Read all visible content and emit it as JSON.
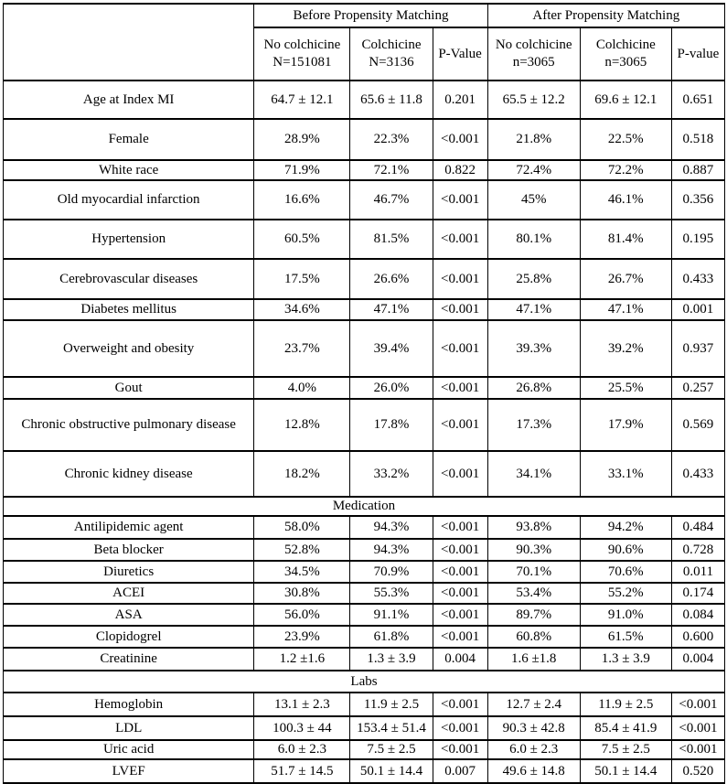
{
  "table": {
    "header": {
      "group_before": "Before Propensity Matching",
      "group_after": "After Propensity Matching",
      "columns": [
        {
          "line1": "No colchicine",
          "line2": "N=151081"
        },
        {
          "line1": "Colchicine",
          "line2": "N=3136"
        },
        {
          "line1": "P-Value",
          "line2": ""
        },
        {
          "line1": "No colchicine",
          "line2": "n=3065"
        },
        {
          "line1": "Colchicine",
          "line2": "n=3065"
        },
        {
          "line1": "P-value",
          "line2": ""
        }
      ]
    },
    "rows": [
      {
        "type": "data",
        "label": "Age at Index MI",
        "values": [
          "64.7 ± 12.1",
          "65.6 ± 11.8",
          "0.201",
          "65.5 ± 12.2",
          "69.6 ± 12.1",
          "0.651"
        ]
      },
      {
        "type": "data",
        "label": "Female",
        "values": [
          "28.9%",
          "22.3%",
          "<0.001",
          "21.8%",
          "22.5%",
          "0.518"
        ]
      },
      {
        "type": "data",
        "label": "White race",
        "values": [
          "71.9%",
          "72.1%",
          "0.822",
          "72.4%",
          "72.2%",
          "0.887"
        ]
      },
      {
        "type": "data",
        "label": "Old myocardial infarction",
        "values": [
          "16.6%",
          "46.7%",
          "<0.001",
          "45%",
          "46.1%",
          "0.356"
        ]
      },
      {
        "type": "data",
        "label": "Hypertension",
        "values": [
          "60.5%",
          "81.5%",
          "<0.001",
          "80.1%",
          "81.4%",
          "0.195"
        ]
      },
      {
        "type": "data",
        "label": "Cerebrovascular diseases",
        "values": [
          "17.5%",
          "26.6%",
          "<0.001",
          "25.8%",
          "26.7%",
          "0.433"
        ]
      },
      {
        "type": "data",
        "label": "Diabetes mellitus",
        "values": [
          "34.6%",
          "47.1%",
          "<0.001",
          "47.1%",
          "47.1%",
          "0.001"
        ]
      },
      {
        "type": "data",
        "label": "Overweight and obesity",
        "values": [
          "23.7%",
          "39.4%",
          "<0.001",
          "39.3%",
          "39.2%",
          "0.937"
        ]
      },
      {
        "type": "data",
        "label": "Gout",
        "values": [
          "4.0%",
          "26.0%",
          "<0.001",
          "26.8%",
          "25.5%",
          "0.257"
        ]
      },
      {
        "type": "data",
        "label": "Chronic obstructive pulmonary disease",
        "values": [
          "12.8%",
          "17.8%",
          "<0.001",
          "17.3%",
          "17.9%",
          "0.569"
        ]
      },
      {
        "type": "data",
        "label": "Chronic kidney disease",
        "values": [
          "18.2%",
          "33.2%",
          "<0.001",
          "34.1%",
          "33.1%",
          "0.433"
        ]
      },
      {
        "type": "section",
        "label": "Medication"
      },
      {
        "type": "data",
        "label": "Antilipidemic agent",
        "values": [
          "58.0%",
          "94.3%",
          "<0.001",
          "93.8%",
          "94.2%",
          "0.484"
        ]
      },
      {
        "type": "data",
        "label": "Beta blocker",
        "values": [
          "52.8%",
          "94.3%",
          "<0.001",
          "90.3%",
          "90.6%",
          "0.728"
        ]
      },
      {
        "type": "data",
        "label": "Diuretics",
        "values": [
          "34.5%",
          "70.9%",
          "<0.001",
          "70.1%",
          "70.6%",
          "0.011"
        ]
      },
      {
        "type": "data",
        "label": "ACEI",
        "values": [
          "30.8%",
          "55.3%",
          "<0.001",
          "53.4%",
          "55.2%",
          "0.174"
        ]
      },
      {
        "type": "data",
        "label": "ASA",
        "values": [
          "56.0%",
          "91.1%",
          "<0.001",
          "89.7%",
          "91.0%",
          "0.084"
        ]
      },
      {
        "type": "data",
        "label": "Clopidogrel",
        "values": [
          "23.9%",
          "61.8%",
          "<0.001",
          "60.8%",
          "61.5%",
          "0.600"
        ]
      },
      {
        "type": "data",
        "label": "Creatinine",
        "values": [
          "1.2 ±1.6",
          "1.3 ± 3.9",
          "0.004",
          "1.6 ±1.8",
          "1.3 ± 3.9",
          "0.004"
        ]
      },
      {
        "type": "section",
        "label": "Labs"
      },
      {
        "type": "data",
        "label": "Hemoglobin",
        "values": [
          "13.1 ± 2.3",
          "11.9 ± 2.5",
          "<0.001",
          "12.7 ± 2.4",
          "11.9 ± 2.5",
          "<0.001"
        ]
      },
      {
        "type": "data",
        "label": "LDL",
        "values": [
          "100.3 ± 44",
          "153.4 ± 51.4",
          "<0.001",
          "90.3 ± 42.8",
          "85.4 ± 41.9",
          "<0.001"
        ]
      },
      {
        "type": "data",
        "label": "Uric acid",
        "values": [
          "6.0 ± 2.3",
          "7.5 ± 2.5",
          "<0.001",
          "6.0 ± 2.3",
          "7.5 ± 2.5",
          "<0.001"
        ]
      },
      {
        "type": "data",
        "label": "LVEF",
        "values": [
          "51.7 ± 14.5",
          "50.1 ± 14.4",
          "0.007",
          "49.6 ± 14.8",
          "50.1 ± 14.4",
          "0.520"
        ]
      }
    ]
  }
}
